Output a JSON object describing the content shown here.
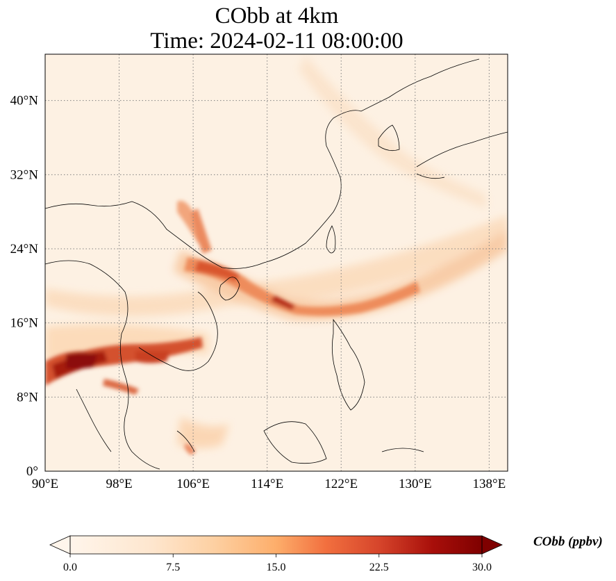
{
  "title": {
    "line1": "CObb at 4km",
    "line2": "Time: 2024-02-11 08:00:00"
  },
  "map": {
    "lon_range": [
      90,
      140
    ],
    "lat_range": [
      0,
      45
    ],
    "lon_ticks": [
      "90°E",
      "98°E",
      "106°E",
      "114°E",
      "122°E",
      "130°E",
      "138°E"
    ],
    "lat_ticks": [
      "0°",
      "8°N",
      "16°N",
      "24°N",
      "32°N",
      "40°N"
    ],
    "gridlines": "dotted"
  },
  "colorbar": {
    "label": "CObb (ppbv)",
    "ticks": [
      "0.0",
      "7.5",
      "15.0",
      "22.5",
      "30.0"
    ],
    "range": [
      0,
      30
    ],
    "extend": "both",
    "colors": [
      "#fff5eb",
      "#fdd9b4",
      "#fda762",
      "#f3701b",
      "#c44103",
      "#7f2704"
    ],
    "cmap": "Oranges-to-dark-red"
  }
}
